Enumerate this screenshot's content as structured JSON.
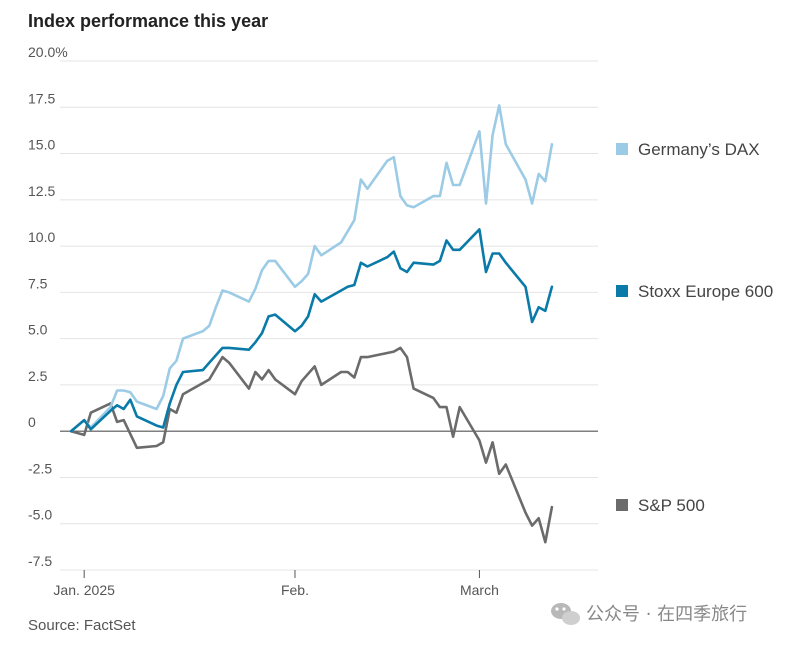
{
  "chart_data": {
    "type": "line",
    "title": "Index performance this year",
    "source": "Source: FactSet",
    "y_ticks": [
      "20.0%",
      "17.5",
      "15.0",
      "12.5",
      "10.0",
      "7.5",
      "5.0",
      "2.5",
      "0",
      "-2.5",
      "-5.0",
      "-7.5"
    ],
    "y_tick_values": [
      20,
      17.5,
      15,
      12.5,
      10,
      7.5,
      5,
      2.5,
      0,
      -2.5,
      -5,
      -7.5
    ],
    "ylim": [
      -7.5,
      20
    ],
    "x_ticks": [
      "Jan. 2025",
      "Feb.",
      "March"
    ],
    "x_tick_dates": [
      "2025-01-02",
      "2025-02-03",
      "2025-03-03"
    ],
    "xlim": [
      "2024-12-31",
      "2025-03-21"
    ],
    "grid": true,
    "legend_position": "right",
    "series": [
      {
        "name": "Germany’s DAX",
        "color": "#9ccbe6",
        "x": [
          "2024-12-31",
          "2025-01-02",
          "2025-01-03",
          "2025-01-06",
          "2025-01-07",
          "2025-01-08",
          "2025-01-09",
          "2025-01-10",
          "2025-01-13",
          "2025-01-14",
          "2025-01-15",
          "2025-01-16",
          "2025-01-17",
          "2025-01-20",
          "2025-01-21",
          "2025-01-22",
          "2025-01-23",
          "2025-01-24",
          "2025-01-27",
          "2025-01-28",
          "2025-01-29",
          "2025-01-30",
          "2025-01-31",
          "2025-02-03",
          "2025-02-04",
          "2025-02-05",
          "2025-02-06",
          "2025-02-07",
          "2025-02-10",
          "2025-02-11",
          "2025-02-12",
          "2025-02-13",
          "2025-02-14",
          "2025-02-17",
          "2025-02-18",
          "2025-02-19",
          "2025-02-20",
          "2025-02-21",
          "2025-02-24",
          "2025-02-25",
          "2025-02-26",
          "2025-02-27",
          "2025-02-28",
          "2025-03-03",
          "2025-03-04",
          "2025-03-05",
          "2025-03-06",
          "2025-03-07",
          "2025-03-10",
          "2025-03-11",
          "2025-03-12",
          "2025-03-13",
          "2025-03-14"
        ],
        "y": [
          0,
          0.6,
          0.2,
          1.3,
          2.2,
          2.2,
          2.1,
          1.6,
          1.2,
          1.9,
          3.4,
          3.8,
          5.0,
          5.4,
          5.7,
          6.7,
          7.6,
          7.5,
          7.0,
          7.7,
          8.7,
          9.2,
          9.2,
          7.8,
          8.1,
          8.5,
          10.0,
          9.5,
          10.2,
          10.8,
          11.4,
          13.6,
          13.1,
          14.6,
          14.8,
          12.7,
          12.2,
          12.1,
          12.7,
          12.7,
          14.5,
          13.3,
          13.3,
          16.2,
          12.3,
          16.0,
          17.6,
          15.5,
          13.6,
          12.3,
          13.9,
          13.5,
          15.5
        ]
      },
      {
        "name": "Stoxx Europe 600",
        "color": "#0a7aa8",
        "x": [
          "2024-12-31",
          "2025-01-02",
          "2025-01-03",
          "2025-01-06",
          "2025-01-07",
          "2025-01-08",
          "2025-01-09",
          "2025-01-10",
          "2025-01-13",
          "2025-01-14",
          "2025-01-15",
          "2025-01-16",
          "2025-01-17",
          "2025-01-20",
          "2025-01-21",
          "2025-01-22",
          "2025-01-23",
          "2025-01-24",
          "2025-01-27",
          "2025-01-28",
          "2025-01-29",
          "2025-01-30",
          "2025-01-31",
          "2025-02-03",
          "2025-02-04",
          "2025-02-05",
          "2025-02-06",
          "2025-02-07",
          "2025-02-10",
          "2025-02-11",
          "2025-02-12",
          "2025-02-13",
          "2025-02-14",
          "2025-02-17",
          "2025-02-18",
          "2025-02-19",
          "2025-02-20",
          "2025-02-21",
          "2025-02-24",
          "2025-02-25",
          "2025-02-26",
          "2025-02-27",
          "2025-02-28",
          "2025-03-03",
          "2025-03-04",
          "2025-03-05",
          "2025-03-06",
          "2025-03-07",
          "2025-03-10",
          "2025-03-11",
          "2025-03-12",
          "2025-03-13",
          "2025-03-14"
        ],
        "y": [
          0,
          0.6,
          0.1,
          1.1,
          1.4,
          1.2,
          1.7,
          0.8,
          0.3,
          0.2,
          1.5,
          2.5,
          3.2,
          3.3,
          3.7,
          4.1,
          4.5,
          4.5,
          4.4,
          4.8,
          5.3,
          6.2,
          6.3,
          5.4,
          5.7,
          6.2,
          7.4,
          7.0,
          7.6,
          7.8,
          7.9,
          9.1,
          8.9,
          9.4,
          9.7,
          8.8,
          8.6,
          9.1,
          9.0,
          9.2,
          10.3,
          9.8,
          9.8,
          10.9,
          8.6,
          9.6,
          9.6,
          9.1,
          7.8,
          5.9,
          6.7,
          6.5,
          7.8
        ]
      },
      {
        "name": "S&P 500",
        "color": "#6b6b6b",
        "x": [
          "2024-12-31",
          "2025-01-02",
          "2025-01-03",
          "2025-01-06",
          "2025-01-07",
          "2025-01-08",
          "2025-01-10",
          "2025-01-13",
          "2025-01-14",
          "2025-01-15",
          "2025-01-16",
          "2025-01-17",
          "2025-01-21",
          "2025-01-22",
          "2025-01-23",
          "2025-01-24",
          "2025-01-27",
          "2025-01-28",
          "2025-01-29",
          "2025-01-30",
          "2025-01-31",
          "2025-02-03",
          "2025-02-04",
          "2025-02-05",
          "2025-02-06",
          "2025-02-07",
          "2025-02-10",
          "2025-02-11",
          "2025-02-12",
          "2025-02-13",
          "2025-02-14",
          "2025-02-18",
          "2025-02-19",
          "2025-02-20",
          "2025-02-21",
          "2025-02-24",
          "2025-02-25",
          "2025-02-26",
          "2025-02-27",
          "2025-02-28",
          "2025-03-03",
          "2025-03-04",
          "2025-03-05",
          "2025-03-06",
          "2025-03-07",
          "2025-03-10",
          "2025-03-11",
          "2025-03-12",
          "2025-03-13",
          "2025-03-14"
        ],
        "y": [
          0,
          -0.2,
          1.0,
          1.5,
          0.5,
          0.6,
          -0.9,
          -0.8,
          -0.6,
          1.2,
          1.0,
          2.0,
          2.8,
          3.4,
          4.0,
          3.7,
          2.3,
          3.2,
          2.8,
          3.3,
          2.8,
          2.0,
          2.7,
          3.1,
          3.5,
          2.5,
          3.2,
          3.2,
          2.9,
          4.0,
          4.0,
          4.3,
          4.5,
          4.0,
          2.3,
          1.8,
          1.3,
          1.3,
          -0.3,
          1.3,
          -0.5,
          -1.7,
          -0.6,
          -2.3,
          -1.8,
          -4.4,
          -5.1,
          -4.7,
          -6.0,
          -4.1
        ]
      }
    ]
  },
  "watermark": {
    "text": "公众号 · 在四季旅行",
    "icon": "wechat-logo"
  }
}
